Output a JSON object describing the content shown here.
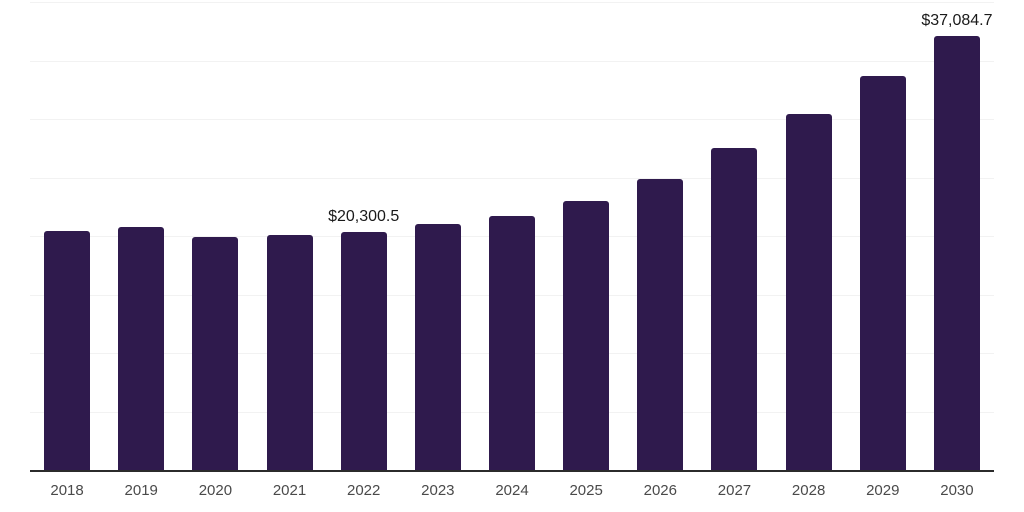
{
  "chart_data": {
    "type": "bar",
    "title": "",
    "xlabel": "",
    "ylabel": "",
    "categories": [
      "2018",
      "2019",
      "2020",
      "2021",
      "2022",
      "2023",
      "2024",
      "2025",
      "2026",
      "2027",
      "2028",
      "2029",
      "2030"
    ],
    "values": [
      20450,
      20800,
      19900,
      20050,
      20300.5,
      21000,
      21750,
      23000,
      24900,
      27550,
      30400,
      33700,
      37084.7
    ],
    "ylim": [
      0,
      40000
    ],
    "grid_step": 5000,
    "grid": "on",
    "legend_position": "none",
    "annotations": [
      {
        "category": "2022",
        "text": "$20,300.5"
      },
      {
        "category": "2030",
        "text": "$37,084.7"
      }
    ]
  },
  "colors": {
    "bar": "#2f1a4d",
    "gridline": "#f2f2f2",
    "axis_line": "#2b2b2b",
    "tick_label": "#4a4a4a",
    "data_label": "#1a1a1a",
    "background": "#ffffff"
  }
}
